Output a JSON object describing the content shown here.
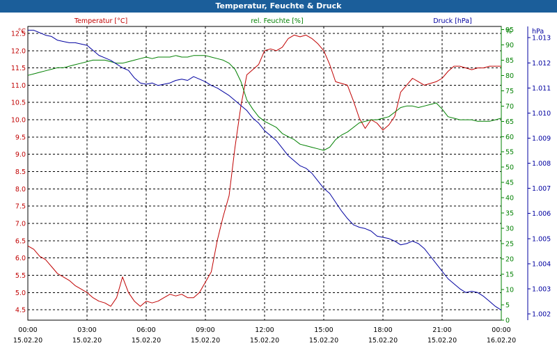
{
  "window": {
    "title": "Temperatur, Feuchte & Druck"
  },
  "chart_data": {
    "type": "line",
    "title": "Temperatur, Feuchte & Druck",
    "colors": {
      "temperature": "#c00000",
      "humidity": "#008000",
      "pressure": "#0000a0",
      "grid": "#000000"
    },
    "axes": {
      "temperature": {
        "label": "Temperatur [°C]",
        "unit": "°C",
        "min": 4.2,
        "max": 12.7,
        "ticks": [
          4.5,
          5.0,
          5.5,
          6.0,
          6.5,
          7.0,
          7.5,
          8.0,
          8.5,
          9.0,
          9.5,
          10.0,
          10.5,
          11.0,
          11.5,
          12.0,
          12.5
        ],
        "tick_labels": [
          "4.5",
          "5.0",
          "5.5",
          "6.0",
          "6.5",
          "7.0",
          "7.5",
          "8.0",
          "8.5",
          "9.0",
          "9.5",
          "10.0",
          "10.5",
          "11.0",
          "11.5",
          "12.0",
          "12.5"
        ]
      },
      "humidity": {
        "label": "rel. Feuchte [%]",
        "unit": "%",
        "min": 0,
        "max": 96,
        "ticks": [
          0,
          5,
          10,
          15,
          20,
          25,
          30,
          35,
          40,
          45,
          50,
          55,
          60,
          65,
          70,
          75,
          80,
          85,
          90,
          95
        ],
        "tick_labels": [
          "0",
          "5",
          "10",
          "15",
          "20",
          "25",
          "30",
          "35",
          "40",
          "45",
          "50",
          "55",
          "60",
          "65",
          "70",
          "75",
          "80",
          "85",
          "90",
          "95"
        ]
      },
      "pressure": {
        "label": "Druck [hPa]",
        "unit": "hPa",
        "min": 1001.75,
        "max": 1013.45,
        "ticks": [
          1002,
          1003,
          1004,
          1005,
          1006,
          1007,
          1008,
          1009,
          1010,
          1011,
          1012,
          1013
        ],
        "tick_labels": [
          "1.002",
          "1.003",
          "1.004",
          "1.005",
          "1.006",
          "1.007",
          "1.008",
          "1.009",
          "1.010",
          "1.011",
          "1.012",
          "1.013"
        ]
      }
    },
    "x_range": [
      0,
      24
    ],
    "x_ticks": [
      {
        "hours": 0,
        "time": "00:00",
        "date": "15.02.20"
      },
      {
        "hours": 3,
        "time": "03:00",
        "date": "15.02.20"
      },
      {
        "hours": 6,
        "time": "06:00",
        "date": "15.02.20"
      },
      {
        "hours": 9,
        "time": "09:00",
        "date": "15.02.20"
      },
      {
        "hours": 12,
        "time": "12:00",
        "date": "15.02.20"
      },
      {
        "hours": 15,
        "time": "15:00",
        "date": "15.02.20"
      },
      {
        "hours": 18,
        "time": "18:00",
        "date": "15.02.20"
      },
      {
        "hours": 21,
        "time": "21:00",
        "date": "15.02.20"
      },
      {
        "hours": 24,
        "time": "00:00",
        "date": "16.02.20"
      }
    ],
    "series": [
      {
        "name": "Temperatur [°C]",
        "key": "temperature",
        "axis": "temperature",
        "x": [
          0,
          0.3,
          0.6,
          0.9,
          1.2,
          1.5,
          1.8,
          2.1,
          2.4,
          2.7,
          3.0,
          3.3,
          3.6,
          3.9,
          4.2,
          4.5,
          4.8,
          5.1,
          5.4,
          5.7,
          6.0,
          6.3,
          6.6,
          6.9,
          7.2,
          7.5,
          7.8,
          8.1,
          8.4,
          8.7,
          9.0,
          9.3,
          9.6,
          9.9,
          10.2,
          10.5,
          10.8,
          11.1,
          11.4,
          11.7,
          12.0,
          12.3,
          12.6,
          12.9,
          13.2,
          13.5,
          13.8,
          14.1,
          14.4,
          14.7,
          15.0,
          15.3,
          15.6,
          15.9,
          16.2,
          16.5,
          16.8,
          17.1,
          17.4,
          17.7,
          18.0,
          18.3,
          18.6,
          18.9,
          19.2,
          19.5,
          19.8,
          20.1,
          20.4,
          20.7,
          21.0,
          21.3,
          21.6,
          21.9,
          22.2,
          22.5,
          22.8,
          23.1,
          23.4,
          23.7,
          24.0
        ],
        "values": [
          6.35,
          6.25,
          6.05,
          5.95,
          5.75,
          5.55,
          5.45,
          5.35,
          5.2,
          5.1,
          5.0,
          4.85,
          4.75,
          4.7,
          4.6,
          4.85,
          5.45,
          5.0,
          4.75,
          4.6,
          4.75,
          4.7,
          4.75,
          4.85,
          4.95,
          4.9,
          4.95,
          4.85,
          4.85,
          5.0,
          5.3,
          5.6,
          6.5,
          7.2,
          7.8,
          9.2,
          10.4,
          11.3,
          11.45,
          11.6,
          12.0,
          12.05,
          12.0,
          12.1,
          12.35,
          12.45,
          12.4,
          12.45,
          12.35,
          12.2,
          12.0,
          11.6,
          11.1,
          11.05,
          11.0,
          10.55,
          10.05,
          9.75,
          10.0,
          9.9,
          9.7,
          9.85,
          10.1,
          10.8,
          11.0,
          11.2,
          11.1,
          11.0,
          11.05,
          11.1,
          11.2,
          11.4,
          11.55,
          11.55,
          11.5,
          11.45,
          11.5,
          11.5,
          11.55,
          11.55,
          11.55
        ]
      },
      {
        "name": "rel. Feuchte [%]",
        "key": "humidity",
        "axis": "humidity",
        "x": [
          0,
          0.3,
          0.6,
          0.9,
          1.2,
          1.5,
          1.8,
          2.1,
          2.4,
          2.7,
          3.0,
          3.3,
          3.6,
          3.9,
          4.2,
          4.5,
          4.8,
          5.1,
          5.4,
          5.7,
          6.0,
          6.3,
          6.6,
          6.9,
          7.2,
          7.5,
          7.8,
          8.1,
          8.4,
          8.7,
          9.0,
          9.3,
          9.6,
          9.9,
          10.2,
          10.5,
          10.8,
          11.1,
          11.4,
          11.7,
          12.0,
          12.3,
          12.6,
          12.9,
          13.2,
          13.5,
          13.8,
          14.1,
          14.4,
          14.7,
          15.0,
          15.3,
          15.6,
          15.9,
          16.2,
          16.5,
          16.8,
          17.1,
          17.4,
          17.7,
          18.0,
          18.3,
          18.6,
          18.9,
          19.2,
          19.5,
          19.8,
          20.1,
          20.4,
          20.7,
          21.0,
          21.3,
          21.6,
          21.9,
          22.2,
          22.5,
          22.8,
          23.1,
          23.4,
          23.7,
          24.0
        ],
        "values": [
          80.0,
          80.5,
          81.0,
          81.5,
          82.0,
          82.5,
          82.5,
          83.0,
          83.5,
          84.0,
          84.5,
          85.0,
          85.0,
          85.0,
          84.5,
          84.0,
          84.0,
          84.5,
          85.0,
          85.5,
          86.0,
          85.5,
          86.0,
          86.0,
          86.0,
          86.5,
          86.0,
          86.0,
          86.5,
          86.5,
          86.5,
          86.0,
          85.5,
          85.0,
          84.0,
          82.0,
          78.0,
          72.0,
          69.0,
          66.5,
          65.0,
          64.0,
          63.0,
          61.0,
          60.0,
          59.0,
          57.5,
          57.0,
          56.5,
          56.0,
          55.5,
          56.5,
          59.0,
          60.5,
          61.5,
          63.0,
          64.5,
          65.0,
          65.5,
          65.5,
          66.0,
          66.5,
          68.0,
          69.5,
          70.0,
          70.0,
          69.5,
          70.0,
          70.5,
          71.0,
          69.0,
          66.5,
          66.0,
          65.5,
          65.5,
          65.5,
          65.0,
          65.0,
          65.0,
          65.5,
          66.0
        ]
      },
      {
        "name": "Druck [hPa]",
        "key": "pressure",
        "axis": "pressure",
        "x": [
          0,
          0.3,
          0.6,
          0.9,
          1.2,
          1.5,
          1.8,
          2.1,
          2.4,
          2.7,
          3.0,
          3.3,
          3.6,
          3.9,
          4.2,
          4.5,
          4.8,
          5.1,
          5.4,
          5.7,
          6.0,
          6.3,
          6.6,
          6.9,
          7.2,
          7.5,
          7.8,
          8.1,
          8.4,
          8.7,
          9.0,
          9.3,
          9.6,
          9.9,
          10.2,
          10.5,
          10.8,
          11.1,
          11.4,
          11.7,
          12.0,
          12.3,
          12.6,
          12.9,
          13.2,
          13.5,
          13.8,
          14.1,
          14.4,
          14.7,
          15.0,
          15.3,
          15.6,
          15.9,
          16.2,
          16.5,
          16.8,
          17.1,
          17.4,
          17.7,
          18.0,
          18.3,
          18.6,
          18.9,
          19.2,
          19.5,
          19.8,
          20.1,
          20.4,
          20.7,
          21.0,
          21.3,
          21.6,
          21.9,
          22.2,
          22.5,
          22.8,
          23.1,
          23.4,
          23.7,
          24.0
        ],
        "values": [
          1013.3,
          1013.3,
          1013.2,
          1013.1,
          1013.05,
          1012.9,
          1012.85,
          1012.8,
          1012.8,
          1012.75,
          1012.7,
          1012.5,
          1012.3,
          1012.2,
          1012.1,
          1011.95,
          1011.8,
          1011.7,
          1011.4,
          1011.2,
          1011.15,
          1011.2,
          1011.1,
          1011.15,
          1011.2,
          1011.3,
          1011.35,
          1011.3,
          1011.45,
          1011.35,
          1011.25,
          1011.1,
          1011.0,
          1010.85,
          1010.7,
          1010.5,
          1010.3,
          1010.1,
          1009.8,
          1009.6,
          1009.3,
          1009.1,
          1008.9,
          1008.6,
          1008.3,
          1008.1,
          1007.9,
          1007.8,
          1007.6,
          1007.3,
          1007.0,
          1006.8,
          1006.45,
          1006.1,
          1005.8,
          1005.55,
          1005.45,
          1005.4,
          1005.3,
          1005.1,
          1005.05,
          1005.0,
          1004.9,
          1004.75,
          1004.8,
          1004.9,
          1004.8,
          1004.6,
          1004.3,
          1004.0,
          1003.7,
          1003.4,
          1003.2,
          1003.0,
          1002.85,
          1002.9,
          1002.85,
          1002.7,
          1002.5,
          1002.3,
          1002.15
        ]
      }
    ],
    "grid": true,
    "legend": "top"
  }
}
